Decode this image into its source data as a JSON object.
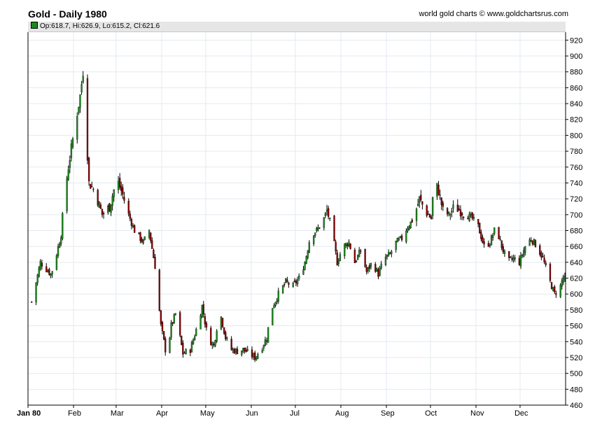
{
  "header": {
    "title": "Gold - Daily 1980",
    "credit": "world gold charts © www.goldchartsrus.com",
    "ohlc_readout": "Op:618.7, Hi:626.9, Lo:615.2, Cl:621.6"
  },
  "colors": {
    "up": "#1a8a1a",
    "down": "#8b0000",
    "wick": "#000000",
    "grid": "#e3eaf0"
  },
  "chart_data": {
    "type": "candlestick",
    "title": "Gold - Daily 1980",
    "ylim": [
      460,
      930
    ],
    "yticks": [
      460,
      480,
      500,
      520,
      540,
      560,
      580,
      600,
      620,
      640,
      660,
      680,
      700,
      720,
      740,
      760,
      780,
      800,
      820,
      840,
      860,
      880,
      900,
      920
    ],
    "x_ticks": [
      "Jan 80",
      "Feb",
      "Mar",
      "Apr",
      "May",
      "Jun",
      "Jul",
      "Aug",
      "Sep",
      "Oct",
      "Nov",
      "Dec"
    ],
    "grid": true,
    "last": {
      "open": 618.7,
      "high": 626.9,
      "low": 615.2,
      "close": 621.6
    },
    "close_path": [
      [
        2,
        590
      ],
      [
        8,
        640
      ],
      [
        15,
        625
      ],
      [
        17,
        635
      ],
      [
        22,
        675
      ],
      [
        24,
        720
      ],
      [
        27,
        760
      ],
      [
        30,
        795
      ],
      [
        35,
        850
      ],
      [
        37,
        880
      ],
      [
        41,
        740
      ],
      [
        45,
        730
      ],
      [
        50,
        700
      ],
      [
        55,
        710
      ],
      [
        60,
        745
      ],
      [
        64,
        725
      ],
      [
        68,
        700
      ],
      [
        72,
        680
      ],
      [
        78,
        665
      ],
      [
        82,
        680
      ],
      [
        86,
        635
      ],
      [
        90,
        560
      ],
      [
        94,
        520
      ],
      [
        97,
        560
      ],
      [
        100,
        575
      ],
      [
        105,
        525
      ],
      [
        110,
        530
      ],
      [
        114,
        555
      ],
      [
        118,
        585
      ],
      [
        122,
        545
      ],
      [
        126,
        535
      ],
      [
        130,
        580
      ],
      [
        134,
        545
      ],
      [
        138,
        530
      ],
      [
        142,
        528
      ],
      [
        146,
        530
      ],
      [
        150,
        525
      ],
      [
        154,
        520
      ],
      [
        158,
        530
      ],
      [
        162,
        545
      ],
      [
        165,
        580
      ],
      [
        170,
        600
      ],
      [
        175,
        615
      ],
      [
        180,
        610
      ],
      [
        184,
        620
      ],
      [
        188,
        640
      ],
      [
        192,
        675
      ],
      [
        196,
        680
      ],
      [
        200,
        690
      ],
      [
        203,
        705
      ],
      [
        206,
        685
      ],
      [
        210,
        640
      ],
      [
        214,
        660
      ],
      [
        218,
        665
      ],
      [
        222,
        640
      ],
      [
        226,
        655
      ],
      [
        230,
        628
      ],
      [
        234,
        640
      ],
      [
        238,
        625
      ],
      [
        242,
        645
      ],
      [
        246,
        650
      ],
      [
        250,
        665
      ],
      [
        254,
        670
      ],
      [
        258,
        685
      ],
      [
        262,
        695
      ],
      [
        266,
        720
      ],
      [
        270,
        705
      ],
      [
        274,
        695
      ],
      [
        276,
        745
      ],
      [
        279,
        730
      ],
      [
        282,
        705
      ],
      [
        286,
        700
      ],
      [
        290,
        710
      ],
      [
        294,
        705
      ],
      [
        298,
        700
      ],
      [
        302,
        695
      ],
      [
        306,
        685
      ],
      [
        310,
        660
      ],
      [
        314,
        665
      ],
      [
        318,
        685
      ],
      [
        322,
        660
      ],
      [
        326,
        640
      ],
      [
        330,
        645
      ],
      [
        334,
        640
      ],
      [
        338,
        660
      ],
      [
        342,
        670
      ],
      [
        346,
        660
      ],
      [
        350,
        645
      ],
      [
        354,
        620
      ],
      [
        358,
        600
      ],
      [
        362,
        610
      ],
      [
        366,
        635
      ],
      [
        368,
        621.6
      ]
    ]
  }
}
